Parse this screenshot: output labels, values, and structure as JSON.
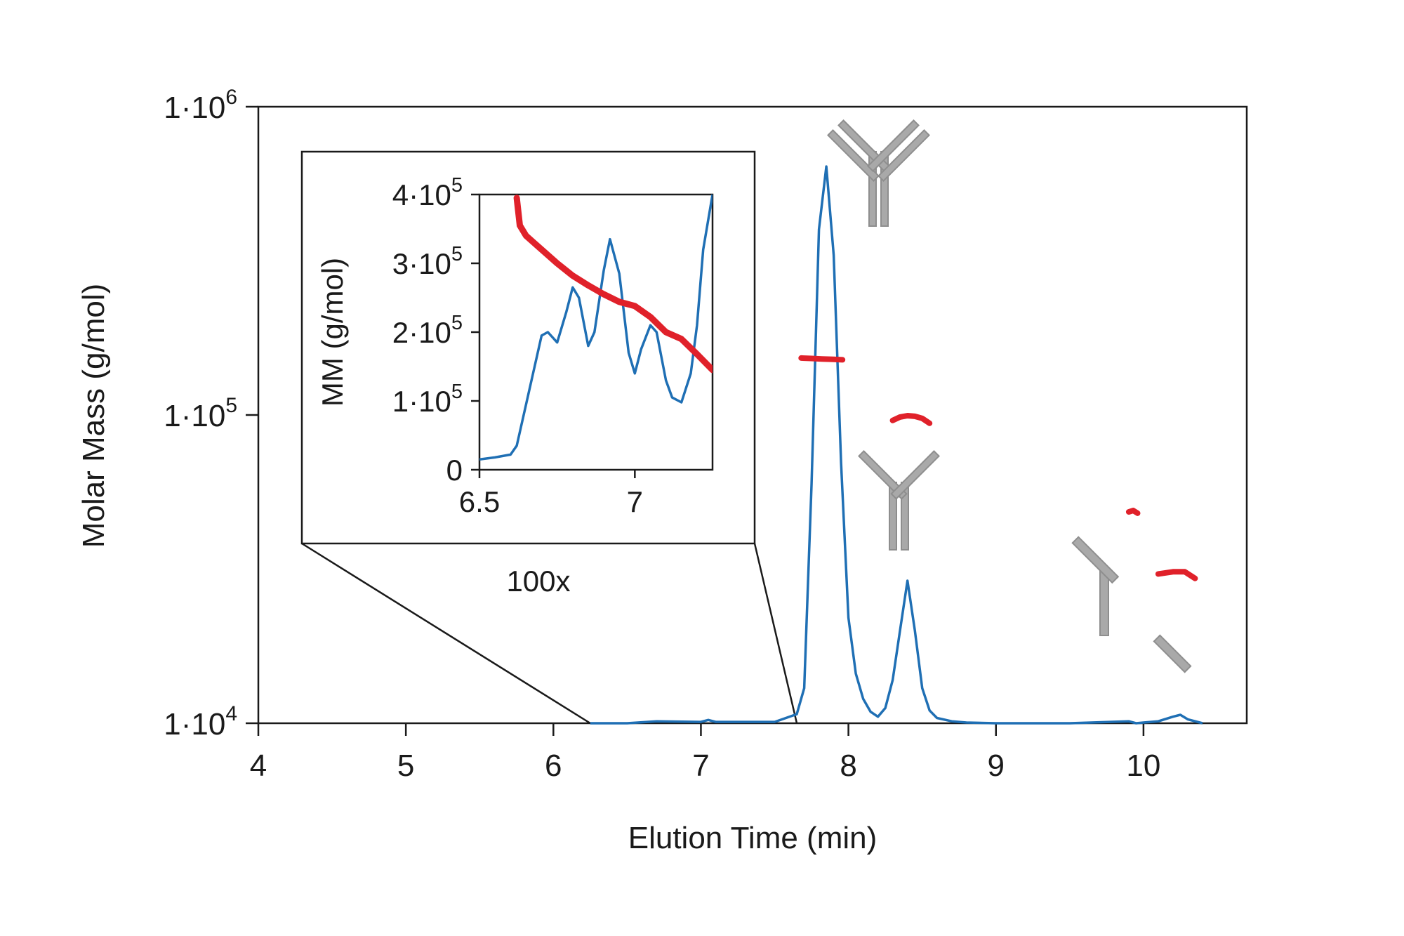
{
  "chart_data": [
    {
      "id": "main",
      "type": "line",
      "title": "",
      "xlabel": "Elution Time (min)",
      "ylabel": "Molar Mass (g/mol)",
      "xlim": [
        4,
        10.7
      ],
      "ylim": [
        10000,
        1000000
      ],
      "yscale": "log",
      "grid": false,
      "x_ticks": [
        4,
        5,
        6,
        7,
        8,
        9,
        10
      ],
      "x_tick_labels": [
        "4",
        "5",
        "6",
        "7",
        "8",
        "9",
        "10"
      ],
      "y_ticks": [
        {
          "value": 10000,
          "mantissa": "1·10",
          "exponent": "4"
        },
        {
          "value": 100000,
          "mantissa": "1·10",
          "exponent": "5"
        },
        {
          "value": 1000000,
          "mantissa": "1·10",
          "exponent": "6"
        }
      ],
      "series": [
        {
          "role": "detector-signal",
          "color": "#1f6fb4",
          "x": [
            6.25,
            6.5,
            6.7,
            7.0,
            7.05,
            7.1,
            7.5,
            7.65,
            7.7,
            7.75,
            7.8,
            7.85,
            7.9,
            7.95,
            8.0,
            8.05,
            8.1,
            8.15,
            8.2,
            8.25,
            8.3,
            8.35,
            8.4,
            8.45,
            8.5,
            8.55,
            8.6,
            8.7,
            8.8,
            9.0,
            9.5,
            9.9,
            9.95,
            10.0,
            10.1,
            10.2,
            10.25,
            10.3,
            10.4
          ],
          "y": [
            10000,
            10000,
            10150,
            10100,
            10250,
            10100,
            10100,
            10700,
            13000,
            60000,
            400000,
            640000,
            330000,
            70000,
            22000,
            14500,
            12000,
            10900,
            10500,
            11200,
            13800,
            20000,
            29000,
            20000,
            13000,
            11000,
            10400,
            10150,
            10050,
            10000,
            10000,
            10150,
            10000,
            10050,
            10150,
            10500,
            10650,
            10300,
            10000
          ]
        },
        {
          "role": "molar-mass",
          "color": "#e0212a",
          "segments": [
            {
              "x": [
                7.68,
                7.75,
                7.82,
                7.9,
                7.96
              ],
              "y": [
                153000,
                152500,
                152000,
                151500,
                151000
              ]
            },
            {
              "x": [
                8.3,
                8.35,
                8.4,
                8.45,
                8.5,
                8.55
              ],
              "y": [
                96000,
                98500,
                99500,
                99000,
                97500,
                94000
              ]
            },
            {
              "x": [
                9.9,
                9.93,
                9.96
              ],
              "y": [
                48500,
                49000,
                48000
              ]
            },
            {
              "x": [
                10.1,
                10.2,
                10.28,
                10.35
              ],
              "y": [
                30500,
                31000,
                31000,
                29500
              ]
            }
          ]
        }
      ],
      "icons": [
        "antibody-monomer-icon",
        "antibody-fragment-icon",
        "heavy-chain-icon",
        "light-chain-icon"
      ]
    },
    {
      "id": "inset",
      "type": "line",
      "title": "",
      "xlabel": "",
      "ylabel": "MM (g/mol)",
      "xlim": [
        6.5,
        7.25
      ],
      "ylim": [
        0,
        400000
      ],
      "grid": false,
      "x_ticks": [
        6.5,
        7
      ],
      "x_tick_labels": [
        "6.5",
        "7"
      ],
      "y_ticks": [
        {
          "value": 0,
          "mantissa": "0",
          "exponent": ""
        },
        {
          "value": 100000,
          "mantissa": "1·10",
          "exponent": "5"
        },
        {
          "value": 200000,
          "mantissa": "2·10",
          "exponent": "5"
        },
        {
          "value": 300000,
          "mantissa": "3·10",
          "exponent": "5"
        },
        {
          "value": 400000,
          "mantissa": "4·10",
          "exponent": "5"
        }
      ],
      "magnification_label": "100x",
      "zoom_region": {
        "x_start": 6.25,
        "x_end": 7.65
      },
      "series": [
        {
          "role": "detector-signal",
          "color": "#1f6fb4",
          "x": [
            6.5,
            6.55,
            6.6,
            6.62,
            6.65,
            6.7,
            6.72,
            6.75,
            6.78,
            6.8,
            6.82,
            6.85,
            6.87,
            6.9,
            6.92,
            6.95,
            6.98,
            7.0,
            7.02,
            7.05,
            7.07,
            7.1,
            7.12,
            7.15,
            7.18,
            7.2,
            7.22,
            7.25
          ],
          "y": [
            15000,
            18000,
            22000,
            35000,
            95000,
            195000,
            200000,
            185000,
            230000,
            265000,
            250000,
            180000,
            200000,
            290000,
            335000,
            285000,
            170000,
            140000,
            175000,
            210000,
            200000,
            130000,
            105000,
            98000,
            140000,
            210000,
            320000,
            400000
          ]
        },
        {
          "role": "molar-mass",
          "color": "#e0212a",
          "x": [
            6.62,
            6.63,
            6.65,
            6.7,
            6.75,
            6.8,
            6.85,
            6.9,
            6.95,
            7.0,
            7.05,
            7.1,
            7.15,
            7.2,
            7.25
          ],
          "y": [
            395000,
            355000,
            340000,
            320000,
            300000,
            282000,
            268000,
            255000,
            244000,
            238000,
            222000,
            200000,
            190000,
            168000,
            145000
          ]
        }
      ]
    }
  ]
}
